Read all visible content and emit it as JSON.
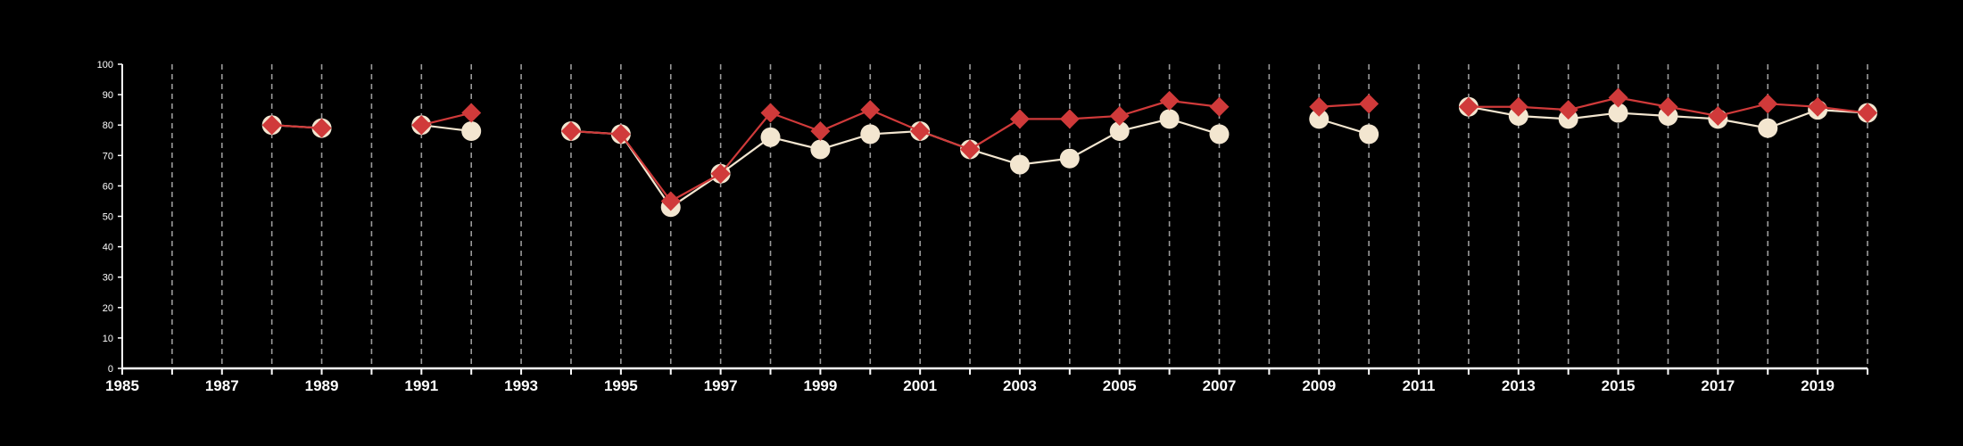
{
  "chart_data": {
    "type": "line",
    "title": "",
    "xlabel": "",
    "ylabel": "",
    "xlim": [
      1985,
      2020
    ],
    "ylim": [
      0,
      100
    ],
    "x_ticks": [
      "1985",
      "1987",
      "1989",
      "1991",
      "1993",
      "1995",
      "1997",
      "1999",
      "2001",
      "2003",
      "2005",
      "2007",
      "2009",
      "2011",
      "2013",
      "2015",
      "2017",
      "2019"
    ],
    "y_ticks": [
      "0",
      "10",
      "20",
      "30",
      "40",
      "50",
      "60",
      "70",
      "80",
      "90",
      "100"
    ],
    "grid": "vertical dashed lines at every year",
    "legend": "none",
    "series": [
      {
        "marker": "circle",
        "color": "#f3e6d0",
        "points": [
          [
            1988,
            80
          ],
          [
            1989,
            79
          ],
          [
            1990,
            null
          ],
          [
            1991,
            80
          ],
          [
            1992,
            78
          ],
          [
            1993,
            null
          ],
          [
            1994,
            78
          ],
          [
            1995,
            77
          ],
          [
            1996,
            53
          ],
          [
            1997,
            64
          ],
          [
            1998,
            76
          ],
          [
            1999,
            72
          ],
          [
            2000,
            77
          ],
          [
            2001,
            78
          ],
          [
            2002,
            72
          ],
          [
            2003,
            67
          ],
          [
            2004,
            69
          ],
          [
            2005,
            78
          ],
          [
            2006,
            82
          ],
          [
            2007,
            77
          ],
          [
            2008,
            null
          ],
          [
            2009,
            82
          ],
          [
            2010,
            77
          ],
          [
            2011,
            null
          ],
          [
            2012,
            86
          ],
          [
            2013,
            83
          ],
          [
            2014,
            82
          ],
          [
            2015,
            84
          ],
          [
            2016,
            83
          ],
          [
            2017,
            82
          ],
          [
            2018,
            79
          ],
          [
            2019,
            85
          ],
          [
            2020,
            84
          ]
        ]
      },
      {
        "marker": "diamond",
        "color": "#d03a3a",
        "points": [
          [
            1988,
            80
          ],
          [
            1989,
            79
          ],
          [
            1990,
            null
          ],
          [
            1991,
            80
          ],
          [
            1992,
            84
          ],
          [
            1993,
            null
          ],
          [
            1994,
            78
          ],
          [
            1995,
            77
          ],
          [
            1996,
            55
          ],
          [
            1997,
            64
          ],
          [
            1998,
            84
          ],
          [
            1999,
            78
          ],
          [
            2000,
            85
          ],
          [
            2001,
            78
          ],
          [
            2002,
            72
          ],
          [
            2003,
            82
          ],
          [
            2004,
            82
          ],
          [
            2005,
            83
          ],
          [
            2006,
            88
          ],
          [
            2007,
            86
          ],
          [
            2008,
            null
          ],
          [
            2009,
            86
          ],
          [
            2010,
            87
          ],
          [
            2011,
            null
          ],
          [
            2012,
            86
          ],
          [
            2013,
            86
          ],
          [
            2014,
            85
          ],
          [
            2015,
            89
          ],
          [
            2016,
            86
          ],
          [
            2017,
            83
          ],
          [
            2018,
            87
          ],
          [
            2019,
            86
          ],
          [
            2020,
            84
          ]
        ]
      }
    ]
  }
}
